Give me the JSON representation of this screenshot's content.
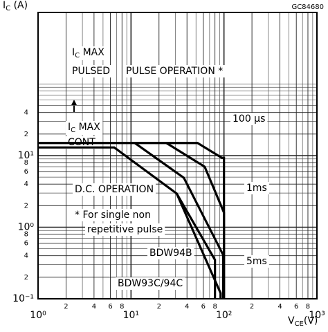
{
  "chart_data": {
    "type": "line",
    "code": "GC84680",
    "y_label": {
      "main": "I",
      "sub": "C",
      "rest": " (A)"
    },
    "x_label": {
      "main": "V",
      "sub": "CE",
      "rest": "(V)"
    },
    "log_x": true,
    "log_y": true,
    "grid": true,
    "xlim": [
      1,
      1000
    ],
    "ylim": [
      0.1,
      1000
    ],
    "xticks": [
      {
        "value": 1,
        "label": "10⁰"
      },
      2,
      4,
      6,
      8,
      {
        "value": 10,
        "label": "10¹"
      },
      {
        "value": 20,
        "label": "2"
      },
      {
        "value": 40,
        "label": "4"
      },
      {
        "value": 60,
        "label": "6"
      },
      {
        "value": 80,
        "label": "8"
      },
      {
        "value": 100,
        "label": "10²"
      },
      {
        "value": 200,
        "label": "2"
      },
      {
        "value": 400,
        "label": "4"
      },
      {
        "value": 600,
        "label": "6"
      },
      {
        "value": 800,
        "label": "8"
      },
      {
        "value": 1000,
        "label": "10³"
      }
    ],
    "x_minor_grid": [
      3,
      5,
      7,
      9,
      30,
      50,
      70,
      90,
      300,
      500,
      700,
      900
    ],
    "yticks": [
      {
        "value": 0.1,
        "label": "10⁻¹"
      },
      {
        "value": 0.2,
        "label": "2"
      },
      {
        "value": 0.4,
        "label": "4"
      },
      {
        "value": 0.6,
        "label": "6"
      },
      {
        "value": 0.8,
        "label": "8"
      },
      {
        "value": 1,
        "label": "10⁰"
      },
      2,
      4,
      6,
      8,
      {
        "value": 10,
        "label": "10¹"
      },
      {
        "value": 20,
        "label": "2"
      },
      {
        "value": 40,
        "label": "4"
      }
    ],
    "y_minor_grid": [
      0.3,
      0.5,
      0.7,
      0.9,
      3,
      5,
      7,
      9,
      30,
      50,
      60,
      70,
      80,
      90,
      100
    ],
    "series": [
      {
        "name": "100 μs",
        "color": "#000000",
        "x": [
          1,
          52,
          95,
          100,
          100
        ],
        "values": [
          15,
          15,
          9.3,
          9.3,
          0.1
        ]
      },
      {
        "name": "1ms",
        "color": "#000000",
        "x": [
          24,
          62,
          100,
          100
        ],
        "values": [
          15,
          7,
          1.6,
          0.1
        ]
      },
      {
        "name": "5ms",
        "color": "#000000",
        "x": [
          11,
          37,
          98,
          98
        ],
        "values": [
          15,
          4.9,
          0.41,
          0.1
        ]
      },
      {
        "name": "BDW94B",
        "color": "#000000",
        "x": [
          1,
          6.6,
          31,
          80,
          80
        ],
        "values": [
          13,
          13,
          2.95,
          0.35,
          0.1
        ]
      },
      {
        "name": "BDW93C/94C",
        "color": "#000000",
        "x": [
          31,
          92,
          92
        ],
        "values": [
          2.95,
          0.12,
          0.1
        ]
      }
    ],
    "annotations": [
      {
        "main": "I",
        "sub": "C",
        "rest": " MAX"
      },
      "PULSED",
      "PULSE OPERATION *",
      {
        "main": "I",
        "sub": "C",
        "rest": " MAX"
      },
      "CONT",
      "D.C. OPERATION",
      "* For single non",
      "repetitive pulse"
    ]
  }
}
